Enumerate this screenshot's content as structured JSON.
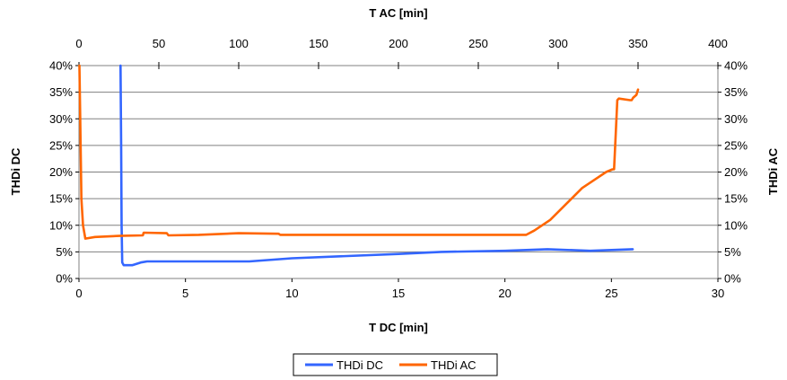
{
  "chart_data": {
    "type": "line",
    "title": "",
    "grid": true,
    "legend_position": "bottom-center",
    "x_bottom": {
      "label": "T DC [min]",
      "range": [
        0,
        30
      ],
      "ticks": [
        0,
        5,
        10,
        15,
        20,
        25,
        30
      ],
      "tick_labels": [
        "0",
        "5",
        "10",
        "15",
        "20",
        "25",
        "30"
      ]
    },
    "x_top": {
      "label": "T AC [min]",
      "range": [
        0,
        400
      ],
      "ticks": [
        0,
        50,
        100,
        150,
        200,
        250,
        300,
        350,
        400
      ],
      "tick_labels": [
        "0",
        "50",
        "100",
        "150",
        "200",
        "250",
        "300",
        "350",
        "400"
      ]
    },
    "y_left": {
      "label": "THDi DC",
      "range": [
        0,
        40
      ],
      "ticks": [
        0,
        5,
        10,
        15,
        20,
        25,
        30,
        35,
        40
      ],
      "tick_labels": [
        "0%",
        "5%",
        "10%",
        "15%",
        "20%",
        "25%",
        "30%",
        "35%",
        "40%"
      ]
    },
    "y_right": {
      "label": "THDi AC",
      "range": [
        0,
        40
      ],
      "ticks": [
        0,
        5,
        10,
        15,
        20,
        25,
        30,
        35,
        40
      ],
      "tick_labels": [
        "0%",
        "5%",
        "10%",
        "15%",
        "20%",
        "25%",
        "30%",
        "35%",
        "40%"
      ]
    },
    "series": [
      {
        "name": "THDi DC",
        "color": "#3366ff",
        "x_axis": "bottom",
        "y_axis": "left",
        "x": [
          1.95,
          1.98,
          2.0,
          2.03,
          2.1,
          2.5,
          2.9,
          3.2,
          5,
          8,
          10,
          15,
          17,
          20,
          22,
          24,
          26
        ],
        "y": [
          40,
          25,
          10,
          3.0,
          2.5,
          2.5,
          3.0,
          3.2,
          3.2,
          3.2,
          3.8,
          4.6,
          5.0,
          5.2,
          5.5,
          5.2,
          5.5
        ]
      },
      {
        "name": "THDi AC",
        "color": "#ff6600",
        "x_axis": "top",
        "y_axis": "right",
        "x": [
          0.3,
          0.8,
          1.5,
          2.5,
          4,
          10,
          25,
          40,
          40.5,
          55,
          56,
          75,
          100,
          125,
          126,
          150,
          200,
          250,
          280,
          285,
          295,
          305,
          315,
          325,
          330,
          334,
          335,
          337,
          338,
          345,
          346,
          347,
          349,
          350
        ],
        "y": [
          40,
          30,
          15,
          10,
          7.5,
          7.8,
          8.0,
          8.1,
          8.6,
          8.5,
          8.1,
          8.2,
          8.5,
          8.4,
          8.2,
          8.2,
          8.2,
          8.2,
          8.2,
          9.0,
          11.0,
          14.0,
          17.0,
          19.0,
          20.0,
          20.5,
          20.5,
          33.5,
          33.8,
          33.5,
          33.5,
          34.0,
          34.5,
          35.5
        ]
      }
    ]
  }
}
